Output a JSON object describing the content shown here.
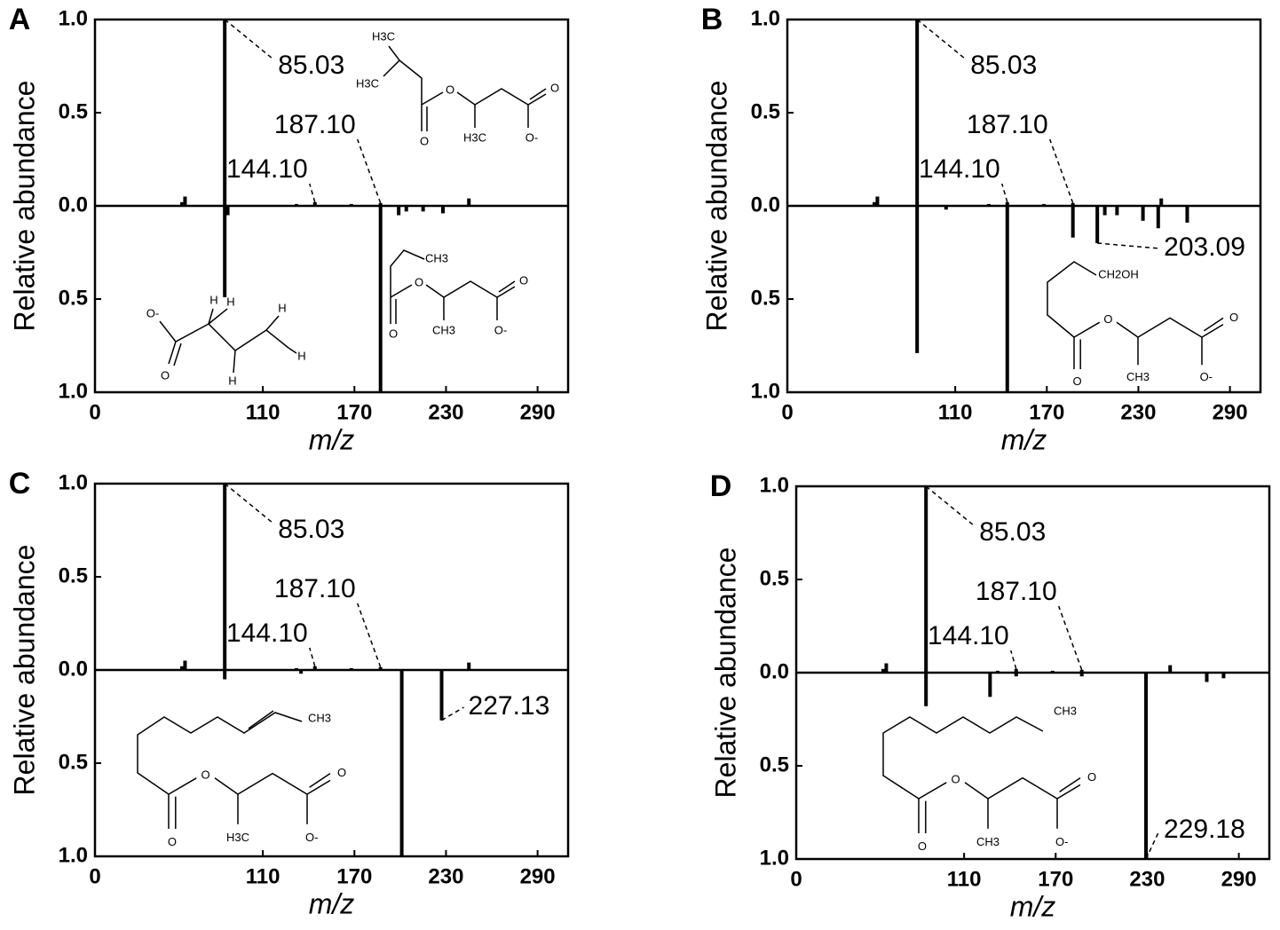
{
  "chart_data": [
    {
      "type": "bar",
      "panel": "A",
      "ylabel": "Relative abundance",
      "xlabel": "m/z",
      "xlim": [
        0,
        310
      ],
      "xticks": [
        0,
        110,
        170,
        230,
        290
      ],
      "ylim": [
        0,
        1
      ],
      "yticks": [
        {
          "value": 0,
          "label": "0.0"
        },
        0.5,
        {
          "value": 1,
          "label": "1.0"
        }
      ],
      "y2lim": [
        0,
        1
      ],
      "y2ticks": [
        0.5,
        {
          "value": 1,
          "label": "1.0"
        }
      ],
      "series": [
        {
          "direction": "up",
          "color": "#000000",
          "x": [
            57,
            59,
            85.03,
            132,
            144.1,
            168,
            187.1,
            245
          ],
          "values": [
            0.02,
            0.05,
            1.0,
            0.01,
            0.02,
            0.01,
            0.015,
            0.04
          ],
          "x_labels": [
            null,
            null,
            "85.03",
            null,
            "144.10",
            null,
            "187.10",
            null
          ]
        },
        {
          "direction": "down",
          "axis": "y2",
          "color": "#000000",
          "x": [
            85.03,
            87,
            187.1,
            199,
            204,
            215,
            228
          ],
          "values": [
            0.49,
            0.05,
            1.0,
            0.05,
            0.03,
            0.03,
            0.04
          ],
          "x_labels": [
            null,
            null,
            null,
            null,
            null,
            null,
            null
          ]
        }
      ]
    },
    {
      "type": "bar",
      "panel": "B",
      "ylabel": "Relative abundance",
      "xlabel": "m/z",
      "xlim": [
        0,
        310
      ],
      "xticks": [
        0,
        110,
        170,
        230,
        290
      ],
      "ylim": [
        0,
        1
      ],
      "yticks": [
        {
          "value": 0,
          "label": "0.0"
        },
        0.5,
        {
          "value": 1,
          "label": "1.0"
        }
      ],
      "y2lim": [
        0,
        1
      ],
      "y2ticks": [
        0.5,
        {
          "value": 1,
          "label": "1.0"
        }
      ],
      "series": [
        {
          "direction": "up",
          "color": "#000000",
          "x": [
            57,
            59,
            85.03,
            132,
            144.1,
            168,
            187.1,
            245
          ],
          "values": [
            0.02,
            0.05,
            1.0,
            0.01,
            0.02,
            0.01,
            0.015,
            0.04
          ],
          "x_labels": [
            null,
            null,
            "85.03",
            null,
            "144.10",
            null,
            "187.10",
            null
          ]
        },
        {
          "direction": "down",
          "axis": "y2",
          "color": "#000000",
          "x": [
            85.03,
            104,
            144.1,
            187.1,
            203.09,
            208,
            216,
            233,
            243,
            262
          ],
          "values": [
            0.79,
            0.02,
            1.0,
            0.17,
            0.2,
            0.05,
            0.05,
            0.08,
            0.12,
            0.09
          ],
          "x_labels": [
            null,
            null,
            null,
            null,
            "203.09",
            null,
            null,
            null,
            null,
            null
          ]
        }
      ]
    },
    {
      "type": "bar",
      "panel": "C",
      "ylabel": "Relative abundance",
      "xlabel": "m/z",
      "xlim": [
        0,
        310
      ],
      "xticks": [
        0,
        110,
        170,
        230,
        290
      ],
      "ylim": [
        0,
        1
      ],
      "yticks": [
        {
          "value": 0,
          "label": "0.0"
        },
        0.5,
        {
          "value": 1,
          "label": "1.0"
        }
      ],
      "y2lim": [
        0,
        1
      ],
      "y2ticks": [
        0.5,
        {
          "value": 1,
          "label": "1.0"
        }
      ],
      "series": [
        {
          "direction": "up",
          "color": "#000000",
          "x": [
            57,
            59,
            85.03,
            132,
            144.1,
            168,
            187.1,
            245
          ],
          "values": [
            0.02,
            0.05,
            1.0,
            0.01,
            0.02,
            0.01,
            0.015,
            0.04
          ],
          "x_labels": [
            null,
            null,
            "85.03",
            null,
            "144.10",
            null,
            "187.10",
            null
          ]
        },
        {
          "direction": "down",
          "axis": "y2",
          "color": "#000000",
          "x": [
            85.03,
            135,
            201,
            227.13
          ],
          "values": [
            0.05,
            0.02,
            1.0,
            0.27
          ],
          "x_labels": [
            null,
            null,
            null,
            "227.13"
          ]
        }
      ]
    },
    {
      "type": "bar",
      "panel": "D",
      "ylabel": "Relative abundance",
      "xlabel": "m/z",
      "xlim": [
        0,
        310
      ],
      "xticks": [
        0,
        110,
        170,
        230,
        290
      ],
      "ylim": [
        0,
        1
      ],
      "yticks": [
        {
          "value": 0,
          "label": "0.0"
        },
        0.5,
        {
          "value": 1,
          "label": "1.0"
        }
      ],
      "y2lim": [
        0,
        1
      ],
      "y2ticks": [
        0.5,
        {
          "value": 1,
          "label": "1.0"
        }
      ],
      "series": [
        {
          "direction": "up",
          "color": "#000000",
          "x": [
            57,
            59,
            85.03,
            132,
            144.1,
            168,
            187.1,
            245
          ],
          "values": [
            0.02,
            0.05,
            1.0,
            0.01,
            0.02,
            0.01,
            0.015,
            0.04
          ],
          "x_labels": [
            null,
            null,
            "85.03",
            null,
            "144.10",
            null,
            "187.10",
            null
          ]
        },
        {
          "direction": "down",
          "axis": "y2",
          "color": "#000000",
          "x": [
            85.03,
            127,
            144.1,
            187.1,
            229.18,
            269,
            280
          ],
          "values": [
            0.18,
            0.13,
            0.02,
            0.02,
            1.0,
            0.05,
            0.03
          ],
          "x_labels": [
            null,
            null,
            null,
            null,
            "229.18",
            null,
            null
          ]
        }
      ]
    }
  ],
  "structures": [
    [
      "H3C",
      "H3C",
      "O",
      "O",
      "H3C",
      "O",
      "O-"
    ],
    [
      "O-",
      "O",
      "H",
      "H",
      "H",
      "H",
      "H"
    ],
    [
      "CH3",
      "O",
      "O",
      "CH3",
      "O",
      "O-"
    ],
    [
      "CH2OH",
      "O",
      "O",
      "CH3",
      "O",
      "O-"
    ],
    [
      "CH3",
      "O",
      "O",
      "H3C",
      "O",
      "O-"
    ],
    [
      "CH3",
      "O",
      "O",
      "CH3",
      "O",
      "O-"
    ]
  ]
}
